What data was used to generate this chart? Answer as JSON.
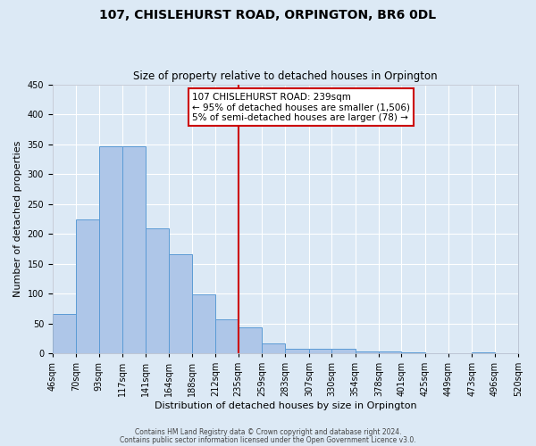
{
  "title": "107, CHISLEHURST ROAD, ORPINGTON, BR6 0DL",
  "subtitle": "Size of property relative to detached houses in Orpington",
  "xlabel": "Distribution of detached houses by size in Orpington",
  "ylabel": "Number of detached properties",
  "bar_edges": [
    46,
    70,
    93,
    117,
    141,
    164,
    188,
    212,
    235,
    259,
    283,
    307,
    330,
    354,
    378,
    401,
    425,
    449,
    473,
    496,
    520
  ],
  "bar_heights": [
    65,
    224,
    346,
    346,
    209,
    166,
    98,
    57,
    43,
    16,
    8,
    7,
    7,
    3,
    3,
    2,
    0,
    0,
    1,
    0
  ],
  "bar_color": "#aec6e8",
  "bar_edge_color": "#5b9bd5",
  "vline_x": 235,
  "vline_color": "#cc0000",
  "annotation_box_color": "#cc0000",
  "annotation_line1": "107 CHISLEHURST ROAD: 239sqm",
  "annotation_line2": "← 95% of detached houses are smaller (1,506)",
  "annotation_line3": "5% of semi-detached houses are larger (78) →",
  "ylim": [
    0,
    450
  ],
  "yticks": [
    0,
    50,
    100,
    150,
    200,
    250,
    300,
    350,
    400,
    450
  ],
  "footer1": "Contains HM Land Registry data © Crown copyright and database right 2024.",
  "footer2": "Contains public sector information licensed under the Open Government Licence v3.0.",
  "background_color": "#dce9f5",
  "plot_background": "#dce9f5",
  "title_fontsize": 10,
  "subtitle_fontsize": 8.5,
  "xlabel_fontsize": 8,
  "ylabel_fontsize": 8,
  "tick_fontsize": 7,
  "footer_fontsize": 5.5,
  "annot_fontsize": 7.5
}
